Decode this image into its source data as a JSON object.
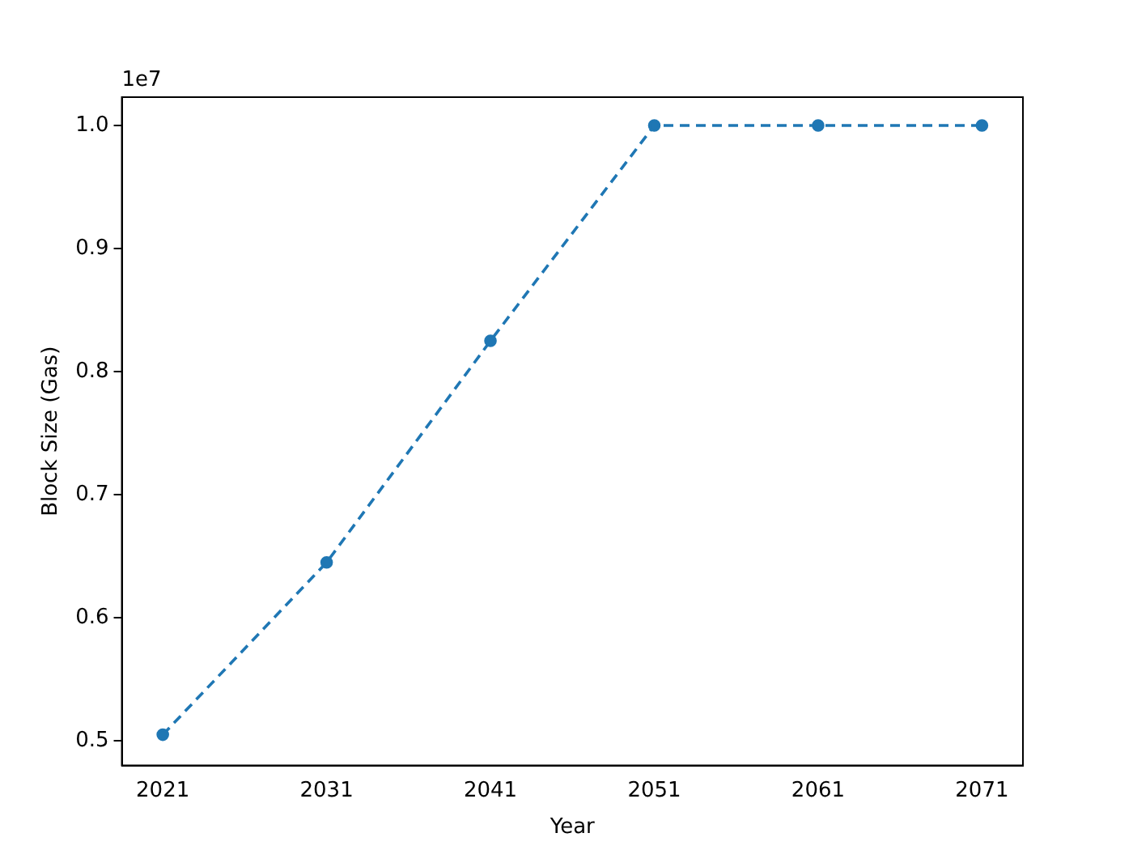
{
  "chart_data": {
    "type": "line",
    "xlabel": "Year",
    "ylabel": "Block Size (Gas)",
    "annotations": [
      "1e7"
    ],
    "x": [
      2021,
      2031,
      2041,
      2051,
      2061,
      2071
    ],
    "series": [
      {
        "color": "#1f77b4",
        "values": [
          0.505,
          0.645,
          0.825,
          1.0,
          1.0,
          1.0
        ]
      }
    ],
    "xlim": [
      2018.5,
      2073.5
    ],
    "xticks": [
      2021,
      2031,
      2041,
      2051,
      2061,
      2071
    ],
    "ylim": [
      0.48,
      1.023
    ],
    "yticks": [
      {
        "value": 0.5,
        "label": "0.5"
      },
      {
        "value": 0.6,
        "label": "0.6"
      },
      {
        "value": 0.7,
        "label": "0.7"
      },
      {
        "value": 0.8,
        "label": "0.8"
      },
      {
        "value": 0.9,
        "label": "0.9"
      },
      {
        "value": 1.0,
        "label": "1.0"
      }
    ],
    "grid": false,
    "legend": false,
    "marker": "circle",
    "line_style": "dashed"
  }
}
